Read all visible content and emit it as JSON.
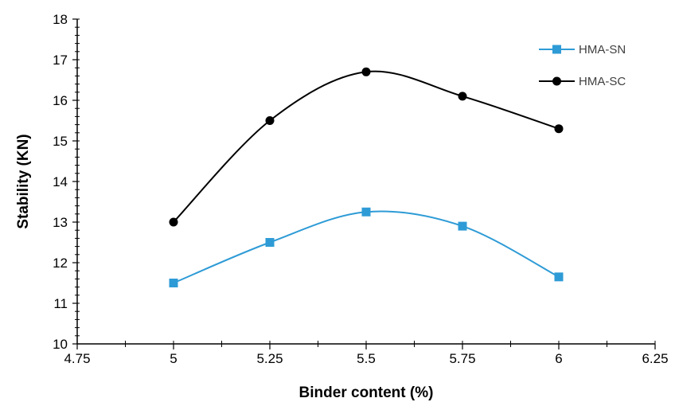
{
  "chart_data": {
    "type": "line",
    "title": "",
    "xlabel": "Binder content (%)",
    "ylabel": "Stability (KN)",
    "xlim": [
      4.75,
      6.25
    ],
    "ylim": [
      10,
      18
    ],
    "x_ticks": [
      "4.75",
      "5",
      "5.25",
      "5.5",
      "5.75",
      "6",
      "6.25"
    ],
    "y_ticks": [
      "10",
      "11",
      "12",
      "13",
      "14",
      "15",
      "16",
      "17",
      "18"
    ],
    "grid": false,
    "smooth": true,
    "legend_position": "top-right",
    "x": [
      5,
      5.25,
      5.5,
      5.75,
      6
    ],
    "series": [
      {
        "name": "HMA-SN",
        "color": "#2E9BD6",
        "marker": "square",
        "values": [
          11.5,
          12.5,
          13.25,
          12.9,
          11.65
        ]
      },
      {
        "name": "HMA-SC",
        "color": "#000000",
        "marker": "circle",
        "values": [
          13.0,
          15.5,
          16.7,
          16.1,
          15.3
        ]
      }
    ]
  }
}
